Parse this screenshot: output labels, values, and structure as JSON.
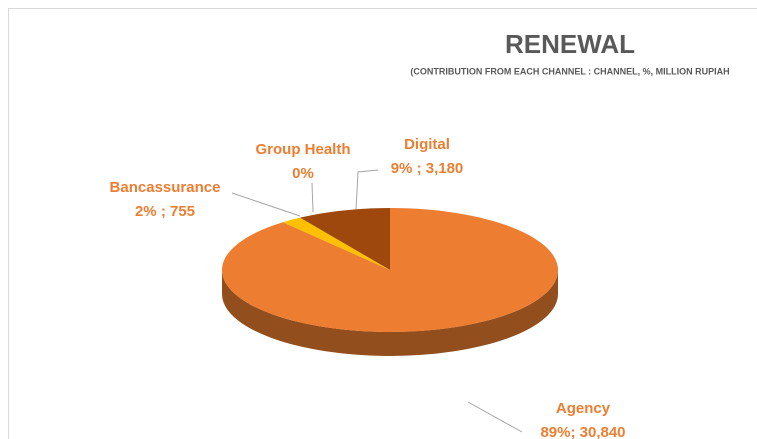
{
  "chart_data": {
    "type": "pie3d",
    "title": "RENEWAL",
    "subtitle": "(CONTRIBUTION FROM EACH CHANNEL : CHANNEL, %, MILLION RUPIAH",
    "categories": [
      "Agency",
      "Bancassurance",
      "Group Health",
      "Digital"
    ],
    "values": [
      89,
      2,
      0,
      9
    ],
    "amounts": [
      30840,
      755,
      null,
      3180
    ],
    "value_labels": [
      "89%; 30,840",
      "2% ; 755",
      "0%",
      "9% ; 3,180"
    ],
    "colors": [
      "#ED7D31",
      "#FFC000",
      "#A5A5A5",
      "#9E480E"
    ]
  }
}
